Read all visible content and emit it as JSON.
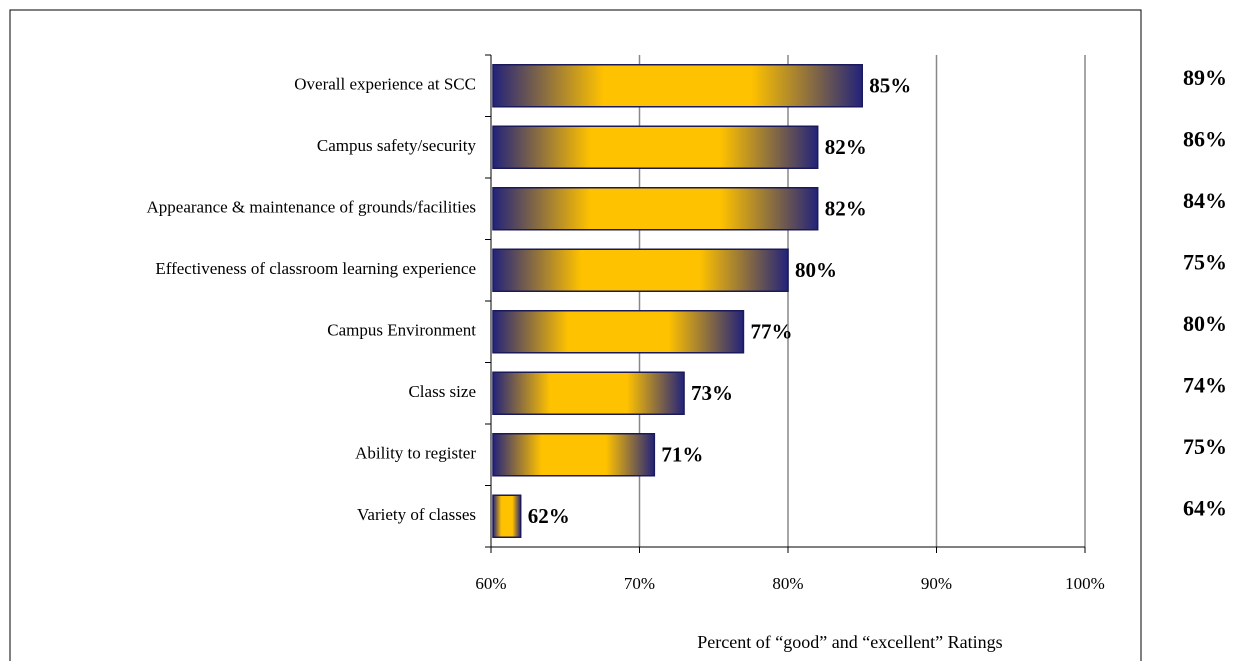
{
  "chart_data": {
    "type": "hbar",
    "categories": [
      "Overall experience at SCC",
      "Campus safety/security",
      "Appearance & maintenance of grounds/facilities",
      "Effectiveness of classroom learning experience",
      "Campus Environment",
      "Class size",
      "Ability to register",
      "Variety of classes"
    ],
    "series": [
      {
        "values": [
          85,
          82,
          82,
          80,
          77,
          73,
          71,
          62
        ],
        "value_labels": [
          "85%",
          "82%",
          "82%",
          "80%",
          "77%",
          "73%",
          "71%",
          "62%"
        ],
        "color": "#ffcc00"
      },
      {
        "values": [
          89,
          86,
          84,
          75,
          80,
          74,
          75,
          64
        ],
        "value_labels": [
          "89%",
          "86%",
          "84%",
          "75%",
          "80%",
          "74%",
          "75%",
          "64%"
        ]
      }
    ],
    "xlim": [
      60,
      100
    ],
    "xticks": [
      {
        "value": 60,
        "label": "60%"
      },
      {
        "value": 70,
        "label": "70%"
      },
      {
        "value": 80,
        "label": "80%"
      },
      {
        "value": 90,
        "label": "90%"
      },
      {
        "value": 100,
        "label": "100%"
      }
    ],
    "xlabel": "Percent of “good” and “excellent” Ratings",
    "grid": true
  }
}
